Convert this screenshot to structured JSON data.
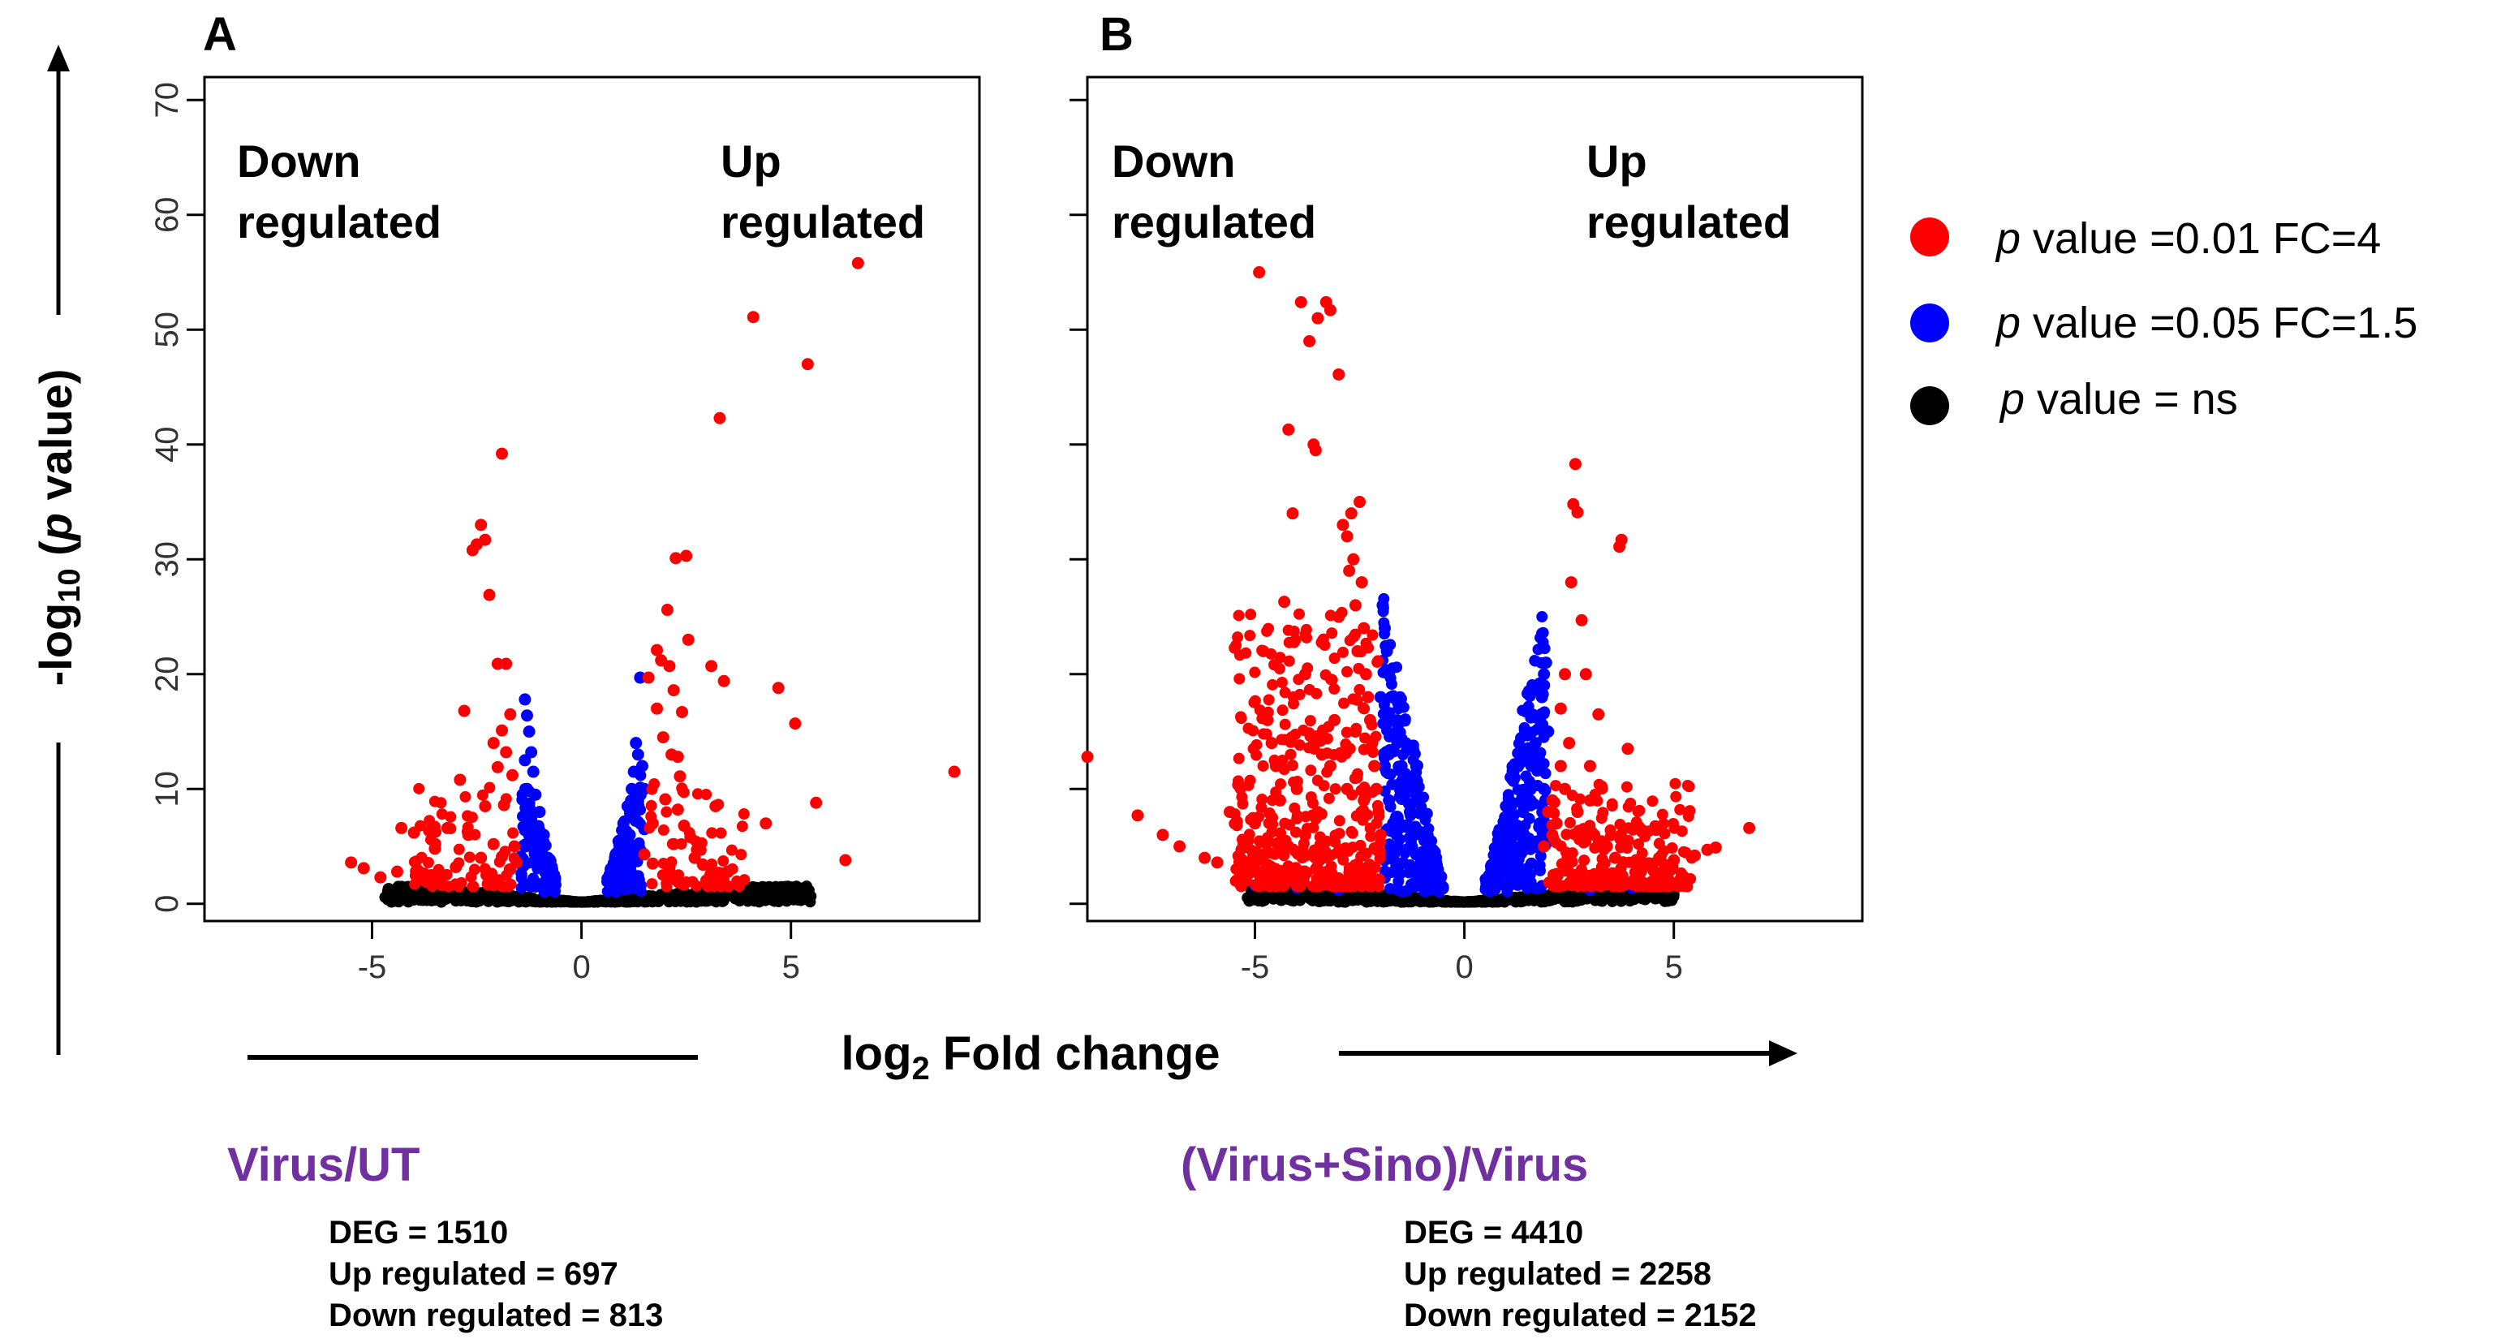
{
  "figure": {
    "y_axis_label_main": "-log",
    "y_axis_label_sub": "10",
    "y_axis_label_italic": "p",
    "y_axis_label_open": "(",
    "y_axis_label_close": " value)",
    "x_axis_label_main": "log",
    "x_axis_label_sub": "2",
    "x_axis_label_rest": " Fold change",
    "colors": {
      "sig_strict": "#ff0000",
      "sig_loose": "#0000ff",
      "ns": "#000000",
      "comparison_title": "#7030a0"
    }
  },
  "legend": [
    {
      "italic": "p",
      "text": " value =0.01 FC=4",
      "color": "#ff0000"
    },
    {
      "italic": "p",
      "text": " value =0.05 FC=1.5",
      "color": "#0000ff"
    },
    {
      "italic": "p",
      "text": " value = ns",
      "color": "#000000"
    }
  ],
  "panels": [
    {
      "letter": "A",
      "down_label_1": "Down",
      "down_label_2": "regulated",
      "up_label_1": "Up",
      "up_label_2": "regulated",
      "comparison": "Virus/UT",
      "stats": [
        "DEG = 1510",
        "Up regulated = 697",
        "Down regulated = 813"
      ]
    },
    {
      "letter": "B",
      "down_label_1": "Down",
      "down_label_2": "regulated",
      "up_label_1": "Up",
      "up_label_2": "regulated",
      "comparison": "(Virus+Sino)/Virus",
      "stats": [
        "DEG = 4410",
        "Up regulated = 2258",
        "Down regulated = 2152"
      ]
    }
  ],
  "chart_data": [
    {
      "type": "scatter",
      "title": "",
      "xlabel": "log2 Fold change",
      "ylabel": "-log10 (p value)",
      "xlim": [
        -9,
        9.5
      ],
      "ylim": [
        -1.5,
        72
      ],
      "xticks": [
        -5,
        0,
        5
      ],
      "yticks": [
        0,
        10,
        20,
        30,
        40,
        50,
        60,
        70
      ],
      "ytick_labels_shown": true,
      "series": [
        {
          "name": "p value =0.01 FC=4",
          "color": "#ff0000",
          "points": [
            [
              -5.5,
              3.6
            ],
            [
              -5.2,
              3.1
            ],
            [
              -4.8,
              2.3
            ],
            [
              -4.4,
              2.8
            ],
            [
              -4.3,
              6.6
            ],
            [
              -4.0,
              6.2
            ],
            [
              -3.9,
              2.9
            ],
            [
              -3.5,
              4.8
            ],
            [
              -3.4,
              2.5
            ],
            [
              -3.2,
              6.6
            ],
            [
              -3.0,
              3.2
            ],
            [
              -2.9,
              10.8
            ],
            [
              -2.8,
              16.8
            ],
            [
              -2.7,
              6.0
            ],
            [
              -2.6,
              30.8
            ],
            [
              -2.5,
              31.3
            ],
            [
              -2.4,
              33.0
            ],
            [
              -2.3,
              31.7
            ],
            [
              -2.3,
              8.5
            ],
            [
              -2.2,
              26.9
            ],
            [
              -2.1,
              14.0
            ],
            [
              -2.0,
              20.9
            ],
            [
              -2.0,
              11.9
            ],
            [
              -1.9,
              39.2
            ],
            [
              -1.9,
              15.1
            ],
            [
              -1.85,
              8.6
            ],
            [
              -1.8,
              20.9
            ],
            [
              -1.8,
              13.2
            ],
            [
              -1.7,
              16.5
            ],
            [
              -1.65,
              11.2
            ],
            [
              -1.6,
              5.0
            ],
            [
              -1.55,
              3.6
            ],
            [
              -2.1,
              5.2
            ],
            [
              -2.4,
              4.0
            ],
            [
              -1.9,
              4.1
            ],
            [
              -1.7,
              3.0
            ],
            [
              1.5,
              4.3
            ],
            [
              1.6,
              19.7
            ],
            [
              1.7,
              7.0
            ],
            [
              1.8,
              17.0
            ],
            [
              1.8,
              22.1
            ],
            [
              1.9,
              21.2
            ],
            [
              1.95,
              14.5
            ],
            [
              2.0,
              9.1
            ],
            [
              2.05,
              25.6
            ],
            [
              2.1,
              20.7
            ],
            [
              2.15,
              13.0
            ],
            [
              2.2,
              18.6
            ],
            [
              2.25,
              30.1
            ],
            [
              2.3,
              8.2
            ],
            [
              2.3,
              12.8
            ],
            [
              2.35,
              11.1
            ],
            [
              2.4,
              16.7
            ],
            [
              2.45,
              6.8
            ],
            [
              2.5,
              30.3
            ],
            [
              2.55,
              23.0
            ],
            [
              2.6,
              5.8
            ],
            [
              2.7,
              4.0
            ],
            [
              2.9,
              3.4
            ],
            [
              3.1,
              20.7
            ],
            [
              3.2,
              8.5
            ],
            [
              3.3,
              42.3
            ],
            [
              3.4,
              19.4
            ],
            [
              3.5,
              2.8
            ],
            [
              4.1,
              51.1
            ],
            [
              4.4,
              7.0
            ],
            [
              4.7,
              18.8
            ],
            [
              5.1,
              15.7
            ],
            [
              5.4,
              47.0
            ],
            [
              5.6,
              8.8
            ],
            [
              6.3,
              3.8
            ],
            [
              6.6,
              55.8
            ],
            [
              8.9,
              11.5
            ],
            [
              2.1,
              3.2
            ],
            [
              1.7,
              3.5
            ],
            [
              2.2,
              5.2
            ]
          ]
        },
        {
          "name": "p value =0.05 FC=1.5",
          "color": "#0000ff",
          "points": [
            [
              -1.35,
              17.8
            ],
            [
              -1.3,
              16.4
            ],
            [
              -1.25,
              15.0
            ],
            [
              -1.2,
              13.2
            ],
            [
              -1.15,
              11.5
            ],
            [
              -1.1,
              9.5
            ],
            [
              -1.0,
              8.0
            ],
            [
              -0.9,
              6.0
            ],
            [
              -0.8,
              4.0
            ],
            [
              -0.7,
              3.0
            ],
            [
              -1.3,
              10.0
            ],
            [
              -1.2,
              7.5
            ],
            [
              -1.1,
              5.0
            ],
            [
              -1.0,
              3.5
            ],
            [
              -1.35,
              12.5
            ],
            [
              -1.25,
              6.0
            ],
            [
              -0.95,
              4.5
            ],
            [
              1.35,
              13.0
            ],
            [
              1.3,
              14.0
            ],
            [
              1.25,
              11.5
            ],
            [
              1.2,
              10.0
            ],
            [
              1.1,
              8.5
            ],
            [
              1.0,
              7.0
            ],
            [
              0.9,
              5.5
            ],
            [
              0.8,
              4.0
            ],
            [
              0.7,
              3.0
            ],
            [
              1.45,
              12.0
            ],
            [
              1.4,
              19.7
            ],
            [
              1.3,
              9.0
            ],
            [
              1.15,
              6.0
            ],
            [
              1.05,
              4.5
            ],
            [
              0.95,
              3.5
            ],
            [
              1.5,
              10.0
            ],
            [
              1.5,
              6.5
            ]
          ]
        },
        {
          "name": "p value = ns",
          "color": "#000000",
          "description": "dense band near y = 0–2 across x = -4.5 to 5.5",
          "points": []
        }
      ]
    },
    {
      "type": "scatter",
      "title": "",
      "xlabel": "log2 Fold change",
      "ylabel": "-log10 (p value)",
      "xlim": [
        -9,
        9.5
      ],
      "ylim": [
        -1.5,
        72
      ],
      "xticks": [
        -5,
        0,
        5
      ],
      "yticks": [
        0,
        10,
        20,
        30,
        40,
        50,
        60,
        70
      ],
      "ytick_labels_shown": false,
      "series": [
        {
          "name": "p value =0.01 FC=4",
          "color": "#ff0000",
          "points": [
            [
              -9.0,
              12.8
            ],
            [
              -7.8,
              7.7
            ],
            [
              -7.2,
              6.0
            ],
            [
              -6.8,
              5.0
            ],
            [
              -6.2,
              4.0
            ],
            [
              -5.9,
              3.6
            ],
            [
              -5.6,
              8.0
            ],
            [
              -5.3,
              3.0
            ],
            [
              -5.0,
              7.0
            ],
            [
              -4.9,
              55.0
            ],
            [
              -4.8,
              22.0
            ],
            [
              -4.7,
              16.0
            ],
            [
              -4.6,
              14.0
            ],
            [
              -4.5,
              12.0
            ],
            [
              -4.4,
              9.0
            ],
            [
              -4.3,
              26.3
            ],
            [
              -4.2,
              41.3
            ],
            [
              -4.1,
              34.0
            ],
            [
              -4.0,
              10.0
            ],
            [
              -3.9,
              52.4
            ],
            [
              -3.8,
              20.0
            ],
            [
              -3.7,
              49.0
            ],
            [
              -3.6,
              40.0
            ],
            [
              -3.55,
              39.5
            ],
            [
              -3.5,
              51.0
            ],
            [
              -3.4,
              13.0
            ],
            [
              -3.3,
              52.4
            ],
            [
              -3.2,
              51.7
            ],
            [
              -3.1,
              16.0
            ],
            [
              -3.0,
              46.1
            ],
            [
              -3.0,
              25.0
            ],
            [
              -2.9,
              33.0
            ],
            [
              -2.8,
              32.0
            ],
            [
              -2.75,
              29.0
            ],
            [
              -2.7,
              34.0
            ],
            [
              -2.65,
              30.0
            ],
            [
              -2.6,
              26.0
            ],
            [
              -2.55,
              22.0
            ],
            [
              -2.5,
              35.0
            ],
            [
              -2.45,
              28.0
            ],
            [
              -2.4,
              24.0
            ],
            [
              -2.35,
              20.0
            ],
            [
              -2.3,
              18.0
            ],
            [
              -2.25,
              16.0
            ],
            [
              -2.2,
              14.0
            ],
            [
              -2.15,
              12.0
            ],
            [
              -2.1,
              10.0
            ],
            [
              -2.05,
              8.0
            ],
            [
              -2.0,
              6.0
            ],
            [
              -3.5,
              8.0
            ],
            [
              -3.8,
              6.0
            ],
            [
              -4.2,
              5.0
            ],
            [
              -2.8,
              10.0
            ],
            [
              -2.6,
              15.0
            ],
            [
              -3.2,
              12.0
            ],
            [
              -2.4,
              9.0
            ],
            [
              1.9,
              5.0
            ],
            [
              2.0,
              8.0
            ],
            [
              2.1,
              6.0
            ],
            [
              2.2,
              7.0
            ],
            [
              2.3,
              12.0
            ],
            [
              2.4,
              10.0
            ],
            [
              2.5,
              14.0
            ],
            [
              2.55,
              28.0
            ],
            [
              2.6,
              34.8
            ],
            [
              2.65,
              38.3
            ],
            [
              2.7,
              34.1
            ],
            [
              2.8,
              24.7
            ],
            [
              2.9,
              20.0
            ],
            [
              3.0,
              9.0
            ],
            [
              3.1,
              6.0
            ],
            [
              3.2,
              16.5
            ],
            [
              3.4,
              5.0
            ],
            [
              3.6,
              4.0
            ],
            [
              3.7,
              31.1
            ],
            [
              3.75,
              31.7
            ],
            [
              3.9,
              13.5
            ],
            [
              4.1,
              3.8
            ],
            [
              4.5,
              3.5
            ],
            [
              5.0,
              3.8
            ],
            [
              5.5,
              4.2
            ],
            [
              5.8,
              4.7
            ],
            [
              6.0,
              4.9
            ],
            [
              6.8,
              6.6
            ],
            [
              2.4,
              20.0
            ],
            [
              2.3,
              17.0
            ],
            [
              2.1,
              9.0
            ],
            [
              2.7,
              8.0
            ],
            [
              3.0,
              12.0
            ]
          ]
        },
        {
          "name": "p value =0.05 FC=1.5",
          "color": "#0000ff",
          "points": [
            [
              -1.95,
              26.0
            ],
            [
              -1.9,
              24.0
            ],
            [
              -1.85,
              22.0
            ],
            [
              -1.8,
              20.0
            ],
            [
              -1.75,
              18.0
            ],
            [
              -1.7,
              16.0
            ],
            [
              -1.6,
              14.0
            ],
            [
              -1.5,
              12.0
            ],
            [
              -1.4,
              10.0
            ],
            [
              -1.3,
              8.0
            ],
            [
              -1.2,
              6.0
            ],
            [
              -1.0,
              4.5
            ],
            [
              -0.8,
              3.0
            ],
            [
              -0.6,
              2.0
            ],
            [
              -1.9,
              12.0
            ],
            [
              -1.8,
              9.0
            ],
            [
              -1.7,
              7.0
            ],
            [
              -1.6,
              5.0
            ],
            [
              -1.5,
              3.5
            ],
            [
              -2.0,
              18.0
            ],
            [
              -5.0,
              1.6
            ],
            [
              -4.0,
              1.4
            ],
            [
              -3.0,
              1.2
            ],
            [
              1.95,
              21.0
            ],
            [
              1.9,
              20.0
            ],
            [
              1.85,
              18.0
            ],
            [
              1.8,
              16.0
            ],
            [
              1.7,
              14.0
            ],
            [
              1.6,
              12.0
            ],
            [
              1.5,
              10.0
            ],
            [
              1.4,
              8.0
            ],
            [
              1.3,
              6.0
            ],
            [
              1.1,
              4.5
            ],
            [
              0.9,
              3.0
            ],
            [
              0.7,
              2.0
            ],
            [
              1.9,
              10.0
            ],
            [
              1.8,
              7.0
            ],
            [
              1.7,
              5.0
            ],
            [
              1.6,
              3.5
            ],
            [
              2.0,
              15.0
            ],
            [
              3.0,
              1.2
            ],
            [
              4.0,
              1.4
            ],
            [
              4.8,
              1.6
            ]
          ]
        },
        {
          "name": "p value = ns",
          "color": "#000000",
          "description": "dense band near y = 0–2 across x = -5 to 5",
          "points": [
            [
              5.0,
              0.8
            ]
          ]
        }
      ]
    }
  ]
}
